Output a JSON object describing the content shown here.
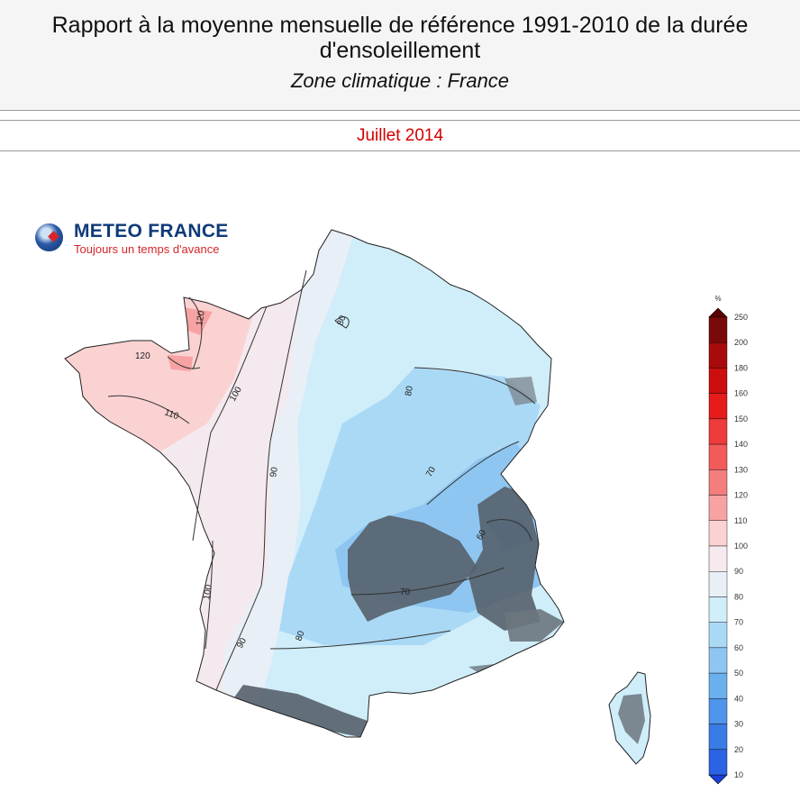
{
  "header": {
    "title_line1": "Rapport à la moyenne mensuelle de référence 1991-2010 de la durée",
    "title_line2": "d'ensoleillement",
    "subtitle": "Zone climatique : France"
  },
  "date": "Juillet 2014",
  "logo": {
    "name": "METEO FRANCE",
    "tagline": "Toujours un temps d'avance"
  },
  "legend": {
    "unit": "%",
    "levels": [
      {
        "label": "250",
        "color": "#7a0a0a"
      },
      {
        "label": "200",
        "color": "#a80b0b"
      },
      {
        "label": "180",
        "color": "#cc0e0e"
      },
      {
        "label": "160",
        "color": "#e61b1b"
      },
      {
        "label": "150",
        "color": "#ee3b3b"
      },
      {
        "label": "140",
        "color": "#f35a5a"
      },
      {
        "label": "130",
        "color": "#f47e7e"
      },
      {
        "label": "120",
        "color": "#f7a3a3"
      },
      {
        "label": "110",
        "color": "#fbd2d2"
      },
      {
        "label": "100",
        "color": "#f6eaee"
      },
      {
        "label": "90",
        "color": "#e9eff6"
      },
      {
        "label": "80",
        "color": "#cfeefa"
      },
      {
        "label": "70",
        "color": "#aad9f6"
      },
      {
        "label": "60",
        "color": "#8ec6f1"
      },
      {
        "label": "50",
        "color": "#6bb0ee"
      },
      {
        "label": "40",
        "color": "#4f95ea"
      },
      {
        "label": "30",
        "color": "#3a7ce6"
      },
      {
        "label": "20",
        "color": "#2a63e3"
      },
      {
        "label": "10",
        "color": "#1e4fe0"
      }
    ]
  },
  "contours": {
    "c120": "120",
    "c120b": "120",
    "c110": "110",
    "c100a": "100",
    "c100b": "100",
    "c90a": "90",
    "c90b": "90",
    "c80a": "80",
    "c80b": "80",
    "c80c": "80",
    "c70a": "70",
    "c70b": "70",
    "c60": "60"
  }
}
